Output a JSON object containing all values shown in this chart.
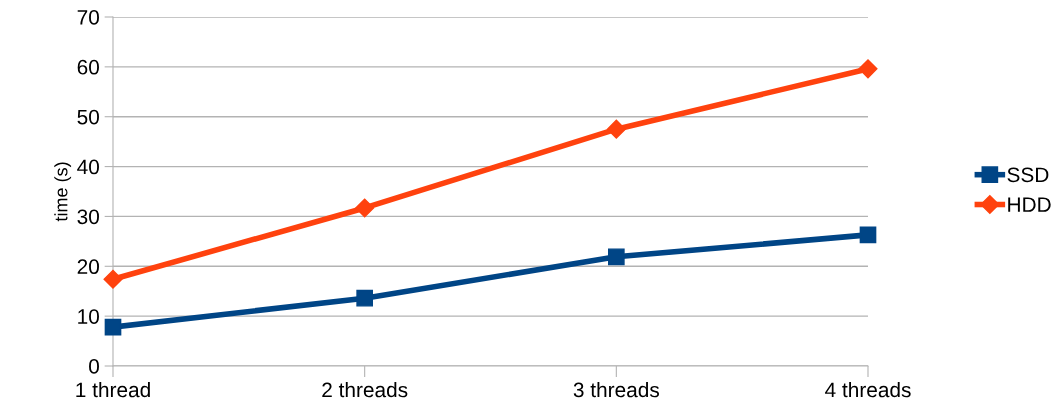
{
  "chart_data": {
    "type": "line",
    "ylabel": "time (s)",
    "categories": [
      "1 thread",
      "2 threads",
      "3 threads",
      "4 threads"
    ],
    "series": [
      {
        "name": "SSD",
        "color": "#004586",
        "marker": "square",
        "values": [
          7.8,
          13.6,
          21.9,
          26.3
        ]
      },
      {
        "name": "HDD",
        "color": "#ff420e",
        "marker": "diamond",
        "values": [
          17.4,
          31.7,
          47.5,
          59.6
        ]
      }
    ],
    "ylim": [
      0,
      70
    ],
    "yticks": [
      0,
      10,
      20,
      30,
      40,
      50,
      60,
      70
    ],
    "grid": "y",
    "legend": "right",
    "line_style": "solid"
  }
}
